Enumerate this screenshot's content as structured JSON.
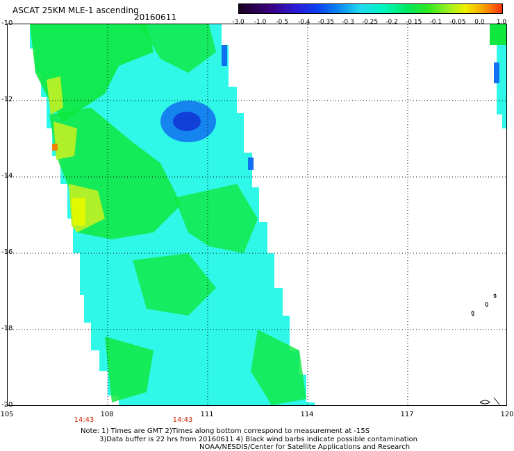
{
  "header": {
    "title": "ASCAT 25KM MLE-1 ascending",
    "date": "20160611"
  },
  "colorbar": {
    "labels": [
      "-3.0",
      "-1.0",
      "-0.5",
      "-0.4",
      "-0.35",
      "-0.3",
      "-0.25",
      "-0.2",
      "-0.15",
      "-0.1",
      "-0.05",
      "0.0",
      "1.0"
    ],
    "colors": [
      "#1a0020",
      "#3a0080",
      "#2a1cd8",
      "#0a40f0",
      "#0a88f0",
      "#20d8f0",
      "#00f8c0",
      "#00e860",
      "#30e820",
      "#a0f020",
      "#f0f000",
      "#f8a000",
      "#f83010"
    ]
  },
  "map": {
    "y_ticks": [
      "-10",
      "-12",
      "-14",
      "-16",
      "-18",
      "-20"
    ],
    "x_ticks": [
      "105",
      "108",
      "111",
      "114",
      "117",
      "120"
    ],
    "time_labels": [
      "14:43",
      "14:43"
    ],
    "swath_colors": {
      "cyan": "#00f0f0",
      "light_cyan": "#30f8e8",
      "green": "#10e840",
      "yellow_green": "#b0f028",
      "yellow": "#e0f800",
      "orange": "#f08000",
      "blue": "#1070f0",
      "dark_blue": "#1040d8"
    }
  },
  "footer": {
    "line1": "Note: 1) Times are GMT 2)Times along bottom correspond to measurement at -15S",
    "line2": "3)Data buffer is 22 hrs from 20160611 4) Black wind barbs indicate possible contamination",
    "line3": "NOAA/NESDIS/Center for Satellite Applications and Research"
  }
}
